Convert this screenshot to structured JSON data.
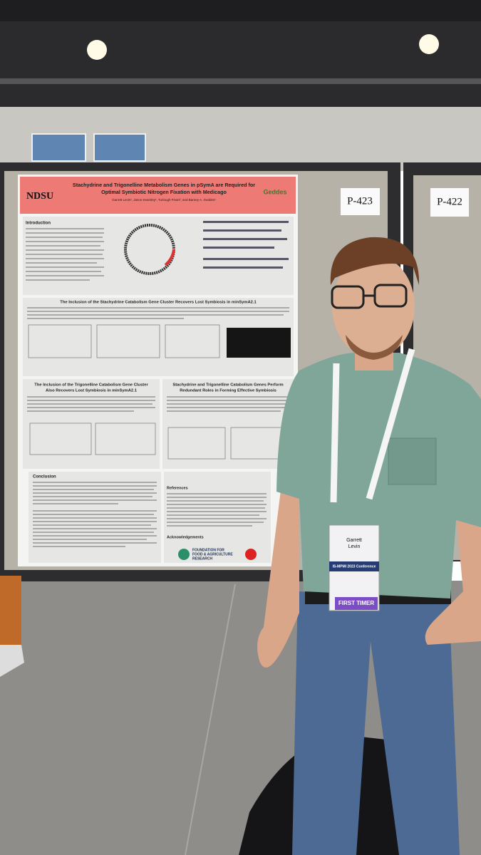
{
  "boards": [
    "P-423",
    "P-422"
  ],
  "poster": {
    "logo": "NDSU",
    "lab_logo": "Geddes",
    "title_lines": [
      "Stachydrine and Trigonelline Metabolism Genes in pSymA are Required for",
      "Optimal Symbiotic Nitrogen Fixation with Medicago"
    ],
    "authors": "Garrett Levin¹, Jason Kearsley¹, Turlough Finan², and Barney A. Geddes¹",
    "sections": {
      "intro": "Introduction",
      "stachydrine": "The Inclusion of the Stachydrine Catabolism Gene Cluster Recovers Lost Symbiosis in minSymA2.1",
      "trigonelline_lines": [
        "The Inclusion of the Trigonelline Catabolism Gene Cluster",
        "Also Recovers Lost Symbiosis in minSymA2.1"
      ],
      "redundant_lines": [
        "Stachydrine and Trigonelline Catabolism Genes Perform",
        "Redundant Roles in Forming Effective Symbiosis"
      ],
      "conclusion": "Conclusion",
      "references": "References",
      "acknowledgements": "Acknowledgements"
    },
    "funder_lines": [
      "FOUNDATION FOR",
      "FOOD & AGRICULTURE",
      "RESEARCH"
    ]
  },
  "badge": {
    "first": "Garrett",
    "last": "Levin",
    "conference": "IS-MPMI 2023 Conference",
    "ribbon": "FIRST TIMER"
  }
}
